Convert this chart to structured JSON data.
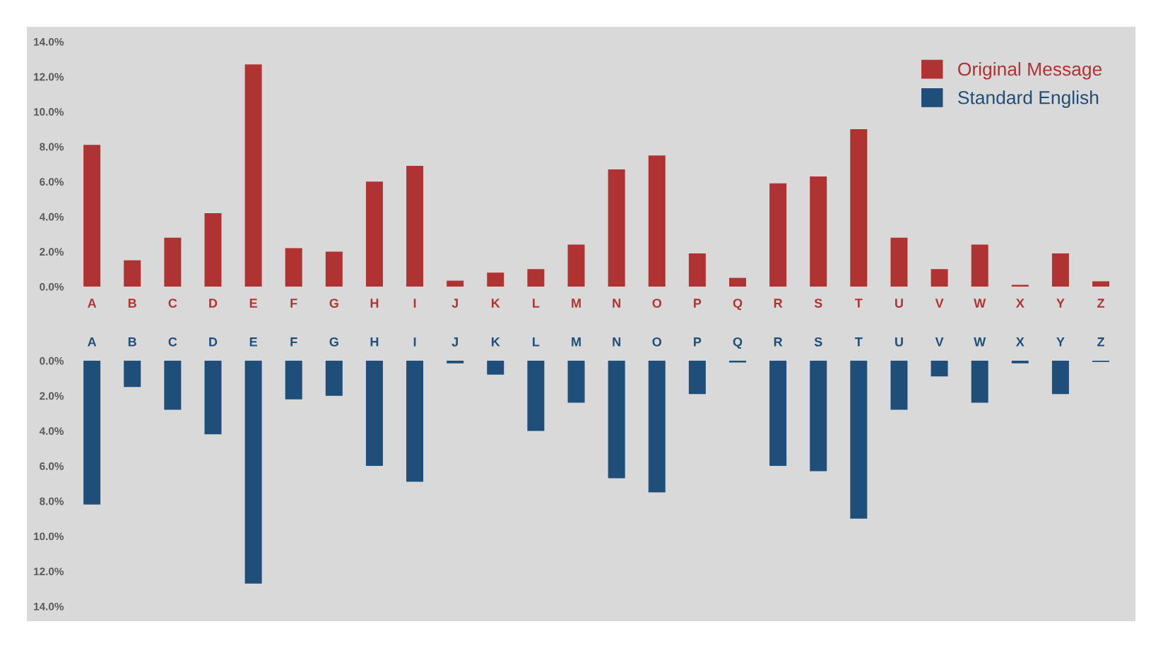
{
  "chart_data": [
    {
      "type": "bar",
      "categories": [
        "A",
        "B",
        "C",
        "D",
        "E",
        "F",
        "G",
        "H",
        "I",
        "J",
        "K",
        "L",
        "M",
        "N",
        "O",
        "P",
        "Q",
        "R",
        "S",
        "T",
        "U",
        "V",
        "W",
        "X",
        "Y",
        "Z"
      ],
      "series": [
        {
          "name": "Original Message",
          "color": "#b03333",
          "values": [
            8.1,
            1.5,
            2.8,
            4.2,
            12.7,
            2.2,
            2.0,
            6.0,
            6.9,
            0.34,
            0.8,
            1.0,
            2.4,
            6.7,
            7.5,
            1.9,
            0.5,
            5.9,
            6.3,
            9.0,
            2.8,
            1.0,
            2.4,
            0.1,
            1.9,
            0.3
          ]
        }
      ],
      "ylim": [
        0,
        14
      ],
      "yticks": [
        {
          "value": 0,
          "label": "0.0%"
        },
        {
          "value": 2,
          "label": "2.0%"
        },
        {
          "value": 4,
          "label": "4.0%"
        },
        {
          "value": 6,
          "label": "6.0%"
        },
        {
          "value": 8,
          "label": "8.0%"
        },
        {
          "value": 10,
          "label": "10.0%"
        },
        {
          "value": 12,
          "label": "12.0%"
        },
        {
          "value": 14,
          "label": "14.0%"
        }
      ],
      "grid": false,
      "legend": "top right"
    },
    {
      "type": "bar",
      "categories": [
        "A",
        "B",
        "C",
        "D",
        "E",
        "F",
        "G",
        "H",
        "I",
        "J",
        "K",
        "L",
        "M",
        "N",
        "O",
        "P",
        "Q",
        "R",
        "S",
        "T",
        "U",
        "V",
        "W",
        "X",
        "Y",
        "Z"
      ],
      "series": [
        {
          "name": "Standard English",
          "color": "#1f4e79",
          "values": [
            8.2,
            1.5,
            2.8,
            4.2,
            12.7,
            2.2,
            2.0,
            6.0,
            6.9,
            0.15,
            0.8,
            4.0,
            2.4,
            6.7,
            7.5,
            1.9,
            0.1,
            6.0,
            6.3,
            9.0,
            2.8,
            0.9,
            2.4,
            0.15,
            1.9,
            0.07
          ]
        }
      ],
      "ylim": [
        14,
        0
      ],
      "yticks": [
        {
          "value": 0,
          "label": "0.0%"
        },
        {
          "value": 2,
          "label": "2.0%"
        },
        {
          "value": 4,
          "label": "4.0%"
        },
        {
          "value": 6,
          "label": "6.0%"
        },
        {
          "value": 8,
          "label": "8.0%"
        },
        {
          "value": 10,
          "label": "10.0%"
        },
        {
          "value": 12,
          "label": "12.0%"
        },
        {
          "value": 14,
          "label": "14.0%"
        }
      ],
      "grid": false,
      "legend": "top right"
    }
  ]
}
